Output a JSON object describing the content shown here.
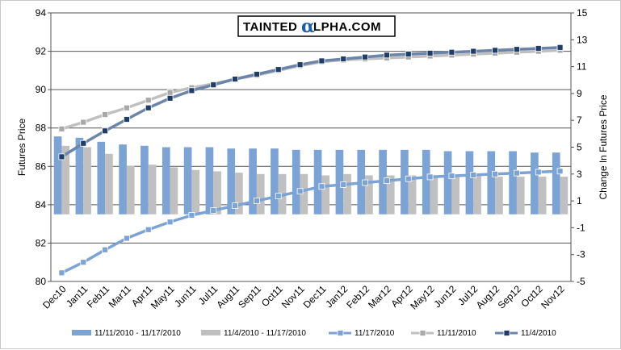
{
  "chart_data": {
    "type": "bar",
    "logo": {
      "left": "TAINTED",
      "alpha": "α",
      "right": "LPHA.COM"
    },
    "left_axis": {
      "label": "Futures Price",
      "ylim": [
        80,
        94
      ],
      "ticks": [
        80,
        82,
        84,
        86,
        88,
        90,
        92,
        94
      ]
    },
    "right_axis": {
      "label": "Change In Futures Price",
      "ylim": [
        -5,
        15
      ],
      "ticks": [
        -5,
        -3,
        -1,
        1,
        3,
        5,
        7,
        9,
        11,
        13,
        15
      ]
    },
    "grid": true,
    "legend_position": "bottom",
    "categories": [
      "Dec10",
      "Jan11",
      "Feb11",
      "Mar11",
      "Apr11",
      "May11",
      "Jun11",
      "Jul11",
      "Aug11",
      "Sep11",
      "Oct11",
      "Nov11",
      "Dec11",
      "Jan12",
      "Feb12",
      "Mar12",
      "Apr12",
      "May12",
      "Jun12",
      "Jul12",
      "Aug12",
      "Sep12",
      "Oct12",
      "Nov12"
    ],
    "bar_series": [
      {
        "name": "11/11/2010 - 11/17/2010",
        "color": "#7ba3d6",
        "axis": "right",
        "values": [
          5.8,
          5.7,
          5.4,
          5.2,
          5.1,
          5.0,
          5.0,
          5.0,
          4.9,
          4.9,
          4.9,
          4.8,
          4.8,
          4.8,
          4.8,
          4.8,
          4.8,
          4.8,
          4.7,
          4.7,
          4.7,
          4.7,
          4.6,
          4.6
        ]
      },
      {
        "name": "11/4/2010 - 11/17/2010",
        "color": "#c0c0c0",
        "axis": "right",
        "values": [
          5.1,
          5.0,
          4.5,
          3.6,
          3.7,
          3.5,
          3.3,
          3.2,
          3.1,
          3.0,
          3.0,
          3.0,
          2.9,
          3.0,
          2.9,
          2.9,
          2.9,
          2.9,
          2.9,
          2.9,
          2.8,
          2.8,
          2.8,
          2.8
        ]
      }
    ],
    "line_series": [
      {
        "name": "11/17/2010",
        "color": "#7ba3d6",
        "marker": "#7ba3d6",
        "axis": "left",
        "values": [
          80.45,
          81.0,
          81.65,
          82.25,
          82.7,
          83.1,
          83.45,
          83.7,
          83.95,
          84.2,
          84.45,
          84.7,
          84.95,
          85.05,
          85.15,
          85.25,
          85.35,
          85.45,
          85.5,
          85.55,
          85.6,
          85.65,
          85.7,
          85.75
        ]
      },
      {
        "name": "11/11/2010",
        "color": "#c0c0c0",
        "marker": "#a8a8a8",
        "axis": "left",
        "values": [
          87.95,
          88.3,
          88.7,
          89.05,
          89.45,
          89.85,
          90.1,
          90.3,
          90.55,
          90.75,
          91.0,
          91.25,
          91.45,
          91.55,
          91.6,
          91.65,
          91.7,
          91.75,
          91.8,
          91.85,
          91.9,
          91.95,
          92.0,
          92.05
        ]
      },
      {
        "name": "11/4/2010",
        "color": "#6b84aa",
        "marker": "#1f3d66",
        "axis": "left",
        "values": [
          86.5,
          87.2,
          87.85,
          88.45,
          89.05,
          89.55,
          89.95,
          90.25,
          90.55,
          90.8,
          91.05,
          91.3,
          91.5,
          91.6,
          91.7,
          91.8,
          91.85,
          91.9,
          91.95,
          92.0,
          92.05,
          92.1,
          92.15,
          92.2
        ]
      }
    ]
  }
}
